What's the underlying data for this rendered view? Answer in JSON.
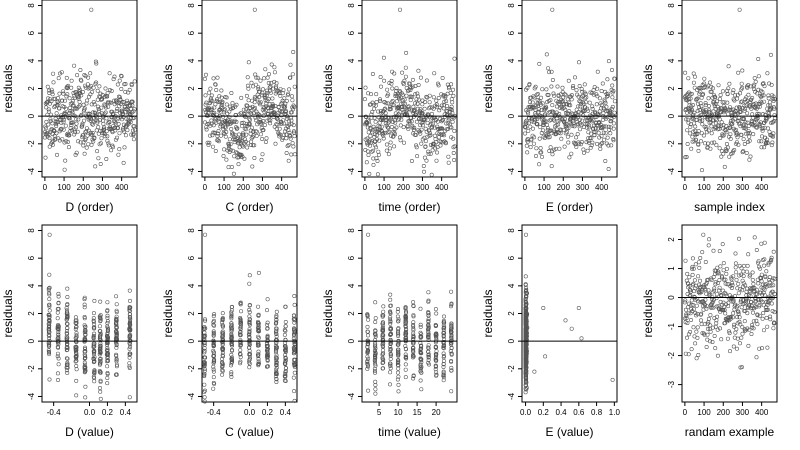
{
  "colors": {
    "points": "#555555",
    "axes": "#000000",
    "refline": "#000000"
  },
  "chart_data": [
    {
      "type": "scatter",
      "xlabel": "D (order)",
      "ylabel": "residuals",
      "xlim": [
        -15,
        480
      ],
      "ylim": [
        -4.4,
        8.4
      ],
      "xticks": [
        "0",
        "100",
        "200",
        "300",
        "400"
      ],
      "xtick_values": [
        0,
        100,
        200,
        300,
        400
      ],
      "yticks": [
        "-4",
        "-2",
        "0",
        "2",
        "4",
        "6",
        "8"
      ],
      "ytick_values": [
        -4,
        -2,
        0,
        2,
        4,
        6,
        8
      ],
      "hline": 0,
      "trend": "flat",
      "gen": "order",
      "seed": 11
    },
    {
      "type": "scatter",
      "xlabel": "C (order)",
      "ylabel": "residuals",
      "xlim": [
        -15,
        480
      ],
      "ylim": [
        -4.4,
        8.4
      ],
      "xticks": [
        "0",
        "100",
        "200",
        "300",
        "400"
      ],
      "xtick_values": [
        0,
        100,
        200,
        300,
        400
      ],
      "yticks": [
        "-4",
        "-2",
        "0",
        "2",
        "4",
        "6",
        "8"
      ],
      "ytick_values": [
        -4,
        -2,
        0,
        2,
        4,
        6,
        8
      ],
      "hline": 0,
      "trend": "dip",
      "gen": "order",
      "seed": 23
    },
    {
      "type": "scatter",
      "xlabel": "time (order)",
      "ylabel": "residuals",
      "xlim": [
        -15,
        480
      ],
      "ylim": [
        -4.4,
        8.4
      ],
      "xticks": [
        "0",
        "100",
        "200",
        "300",
        "400"
      ],
      "xtick_values": [
        0,
        100,
        200,
        300,
        400
      ],
      "yticks": [
        "-4",
        "-2",
        "0",
        "2",
        "4",
        "6",
        "8"
      ],
      "ytick_values": [
        -4,
        -2,
        0,
        2,
        4,
        6,
        8
      ],
      "hline": 0,
      "trend": "wave",
      "gen": "order",
      "seed": 37
    },
    {
      "type": "scatter",
      "xlabel": "E (order)",
      "ylabel": "residuals",
      "xlim": [
        -15,
        480
      ],
      "ylim": [
        -4.4,
        8.4
      ],
      "xticks": [
        "0",
        "100",
        "200",
        "300",
        "400"
      ],
      "xtick_values": [
        0,
        100,
        200,
        300,
        400
      ],
      "yticks": [
        "-4",
        "-2",
        "0",
        "2",
        "4",
        "6",
        "8"
      ],
      "ytick_values": [
        -4,
        -2,
        0,
        2,
        4,
        6,
        8
      ],
      "hline": 0,
      "trend": "flat",
      "gen": "order",
      "seed": 41
    },
    {
      "type": "scatter",
      "xlabel": "sample index",
      "ylabel": "residuals",
      "xlim": [
        -15,
        480
      ],
      "ylim": [
        -4.4,
        8.4
      ],
      "xticks": [
        "0",
        "100",
        "200",
        "300",
        "400"
      ],
      "xtick_values": [
        0,
        100,
        200,
        300,
        400
      ],
      "yticks": [
        "-4",
        "-2",
        "0",
        "2",
        "4",
        "6",
        "8"
      ],
      "ytick_values": [
        -4,
        -2,
        0,
        2,
        4,
        6,
        8
      ],
      "hline": 0,
      "trend": "flat",
      "gen": "order",
      "seed": 53
    },
    {
      "type": "scatter",
      "xlabel": "D (value)",
      "ylabel": "residuals",
      "xlim": [
        -0.53,
        0.53
      ],
      "ylim": [
        -4.4,
        8.4
      ],
      "xticks": [
        "-0.4",
        "0.0",
        "0.2",
        "0.4"
      ],
      "xtick_values": [
        -0.4,
        0.0,
        0.2,
        0.4
      ],
      "yticks": [
        "-4",
        "-2",
        "0",
        "2",
        "4",
        "6",
        "8"
      ],
      "ytick_values": [
        -4,
        -2,
        0,
        2,
        4,
        6,
        8
      ],
      "hline": 0,
      "gen": "columns",
      "columns": [
        -0.45,
        -0.35,
        -0.25,
        -0.15,
        -0.05,
        0.05,
        0.12,
        0.2,
        0.3,
        0.45
      ],
      "seed": 61
    },
    {
      "type": "scatter",
      "xlabel": "C (value)",
      "ylabel": "residuals",
      "xlim": [
        -0.53,
        0.53
      ],
      "ylim": [
        -4.4,
        8.4
      ],
      "xticks": [
        "-0.4",
        "0.0",
        "0.2",
        "0.4"
      ],
      "xtick_values": [
        -0.4,
        0.0,
        0.2,
        0.4
      ],
      "yticks": [
        "-4",
        "-2",
        "0",
        "2",
        "4",
        "6",
        "8"
      ],
      "ytick_values": [
        -4,
        -2,
        0,
        2,
        4,
        6,
        8
      ],
      "hline": 0,
      "gen": "columns",
      "columns": [
        -0.5,
        -0.4,
        -0.3,
        -0.2,
        -0.1,
        0.0,
        0.1,
        0.2,
        0.3,
        0.4,
        0.5
      ],
      "seed": 71
    },
    {
      "type": "scatter",
      "xlabel": "time (value)",
      "ylabel": "residuals",
      "xlim": [
        0.5,
        25.5
      ],
      "ylim": [
        -4.4,
        8.4
      ],
      "xticks": [
        "5",
        "10",
        "15",
        "20"
      ],
      "xtick_values": [
        5,
        10,
        15,
        20
      ],
      "yticks": [
        "-4",
        "-2",
        "0",
        "2",
        "4",
        "6",
        "8"
      ],
      "ytick_values": [
        -4,
        -2,
        0,
        2,
        4,
        6,
        8
      ],
      "hline": 0,
      "gen": "columns",
      "columns": [
        2,
        4,
        6,
        8,
        10,
        12,
        14,
        16,
        18,
        20,
        22,
        24
      ],
      "seed": 83
    },
    {
      "type": "scatter",
      "xlabel": "E (value)",
      "ylabel": "residuals",
      "xlim": [
        -0.04,
        1.03
      ],
      "ylim": [
        -4.4,
        8.4
      ],
      "xticks": [
        "0.0",
        "0.2",
        "0.4",
        "0.6",
        "0.8",
        "1.0"
      ],
      "xtick_values": [
        0.0,
        0.2,
        0.4,
        0.6,
        0.8,
        1.0
      ],
      "yticks": [
        "-4",
        "-2",
        "0",
        "2",
        "4",
        "6",
        "8"
      ],
      "ytick_values": [
        -4,
        -2,
        0,
        2,
        4,
        6,
        8
      ],
      "hline": 0,
      "gen": "skewed",
      "extra_points": [
        [
          0.1,
          -2.2
        ],
        [
          0.2,
          2.4
        ],
        [
          0.22,
          -1.1
        ],
        [
          0.45,
          1.5
        ],
        [
          0.52,
          0.9
        ],
        [
          0.6,
          2.4
        ],
        [
          0.63,
          0.2
        ],
        [
          0.98,
          -2.8
        ]
      ],
      "seed": 97
    },
    {
      "type": "scatter",
      "xlabel": "randam example",
      "ylabel": "residuals",
      "xlim": [
        -15,
        480
      ],
      "ylim": [
        -3.6,
        2.5
      ],
      "xticks": [
        "0",
        "100",
        "200",
        "300",
        "400"
      ],
      "xtick_values": [
        0,
        100,
        200,
        300,
        400
      ],
      "yticks": [
        "-3",
        "-2",
        "-1",
        "0",
        "1",
        "2"
      ],
      "ytick_values": [
        -3,
        -2,
        -1,
        0,
        1,
        2
      ],
      "hline": 0,
      "trend": "flat",
      "gen": "order",
      "sd": 1.0,
      "seed": 107
    }
  ]
}
